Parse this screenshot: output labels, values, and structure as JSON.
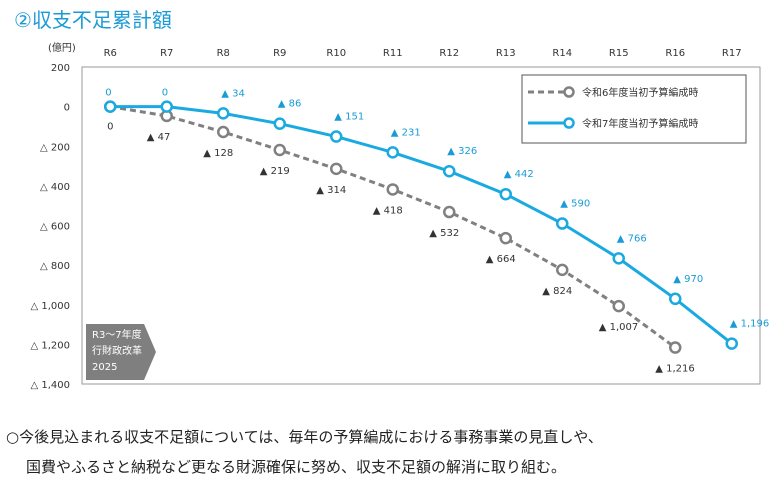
{
  "title": "②収支不足累計額",
  "chart_data": {
    "type": "line",
    "unit_label": "(億円)",
    "categories": [
      "R6",
      "R7",
      "R8",
      "R9",
      "R10",
      "R11",
      "R12",
      "R13",
      "R14",
      "R15",
      "R16",
      "R17"
    ],
    "ylim": [
      -1400,
      200
    ],
    "y_ticks": [
      {
        "value": 200,
        "label": "200"
      },
      {
        "value": 0,
        "label": "0"
      },
      {
        "value": -200,
        "label": "△ 200"
      },
      {
        "value": -400,
        "label": "△ 400"
      },
      {
        "value": -600,
        "label": "△ 600"
      },
      {
        "value": -800,
        "label": "△ 800"
      },
      {
        "value": -1000,
        "label": "△ 1,000"
      },
      {
        "value": -1200,
        "label": "△ 1,200"
      },
      {
        "value": -1400,
        "label": "△ 1,400"
      }
    ],
    "series": [
      {
        "name": "令和6年度当初予算編成時",
        "color": "#808080",
        "style": "dashed",
        "values": [
          0,
          -47,
          -128,
          -219,
          -314,
          -418,
          -532,
          -664,
          -824,
          -1007,
          -1216,
          null
        ],
        "labels": [
          "0",
          "▲ 47",
          "▲ 128",
          "▲ 219",
          "▲ 314",
          "▲ 418",
          "▲ 532",
          "▲ 664",
          "▲ 824",
          "▲ 1,007",
          "▲ 1,216",
          null
        ]
      },
      {
        "name": "令和7年度当初予算編成時",
        "color": "#1aa9e0",
        "style": "solid",
        "values": [
          0,
          0,
          -34,
          -86,
          -151,
          -231,
          -326,
          -442,
          -590,
          -766,
          -970,
          -1196
        ],
        "labels": [
          "0",
          "0",
          "▲ 34",
          "▲ 86",
          "▲ 151",
          "▲ 231",
          "▲ 326",
          "▲ 442",
          "▲ 590",
          "▲ 766",
          "▲ 970",
          "▲ 1,196"
        ]
      }
    ],
    "annotation": [
      "R3～7年度",
      "行財政改革",
      "2025"
    ],
    "grid": false,
    "legend_position": "top-right"
  },
  "note": {
    "line1": "○今後見込まれる収支不足額については、毎年の予算編成における事務事業の見直しや、",
    "line2": "国費やふるさと納税など更なる財源確保に努め、収支不足額の解消に取り組む。"
  }
}
